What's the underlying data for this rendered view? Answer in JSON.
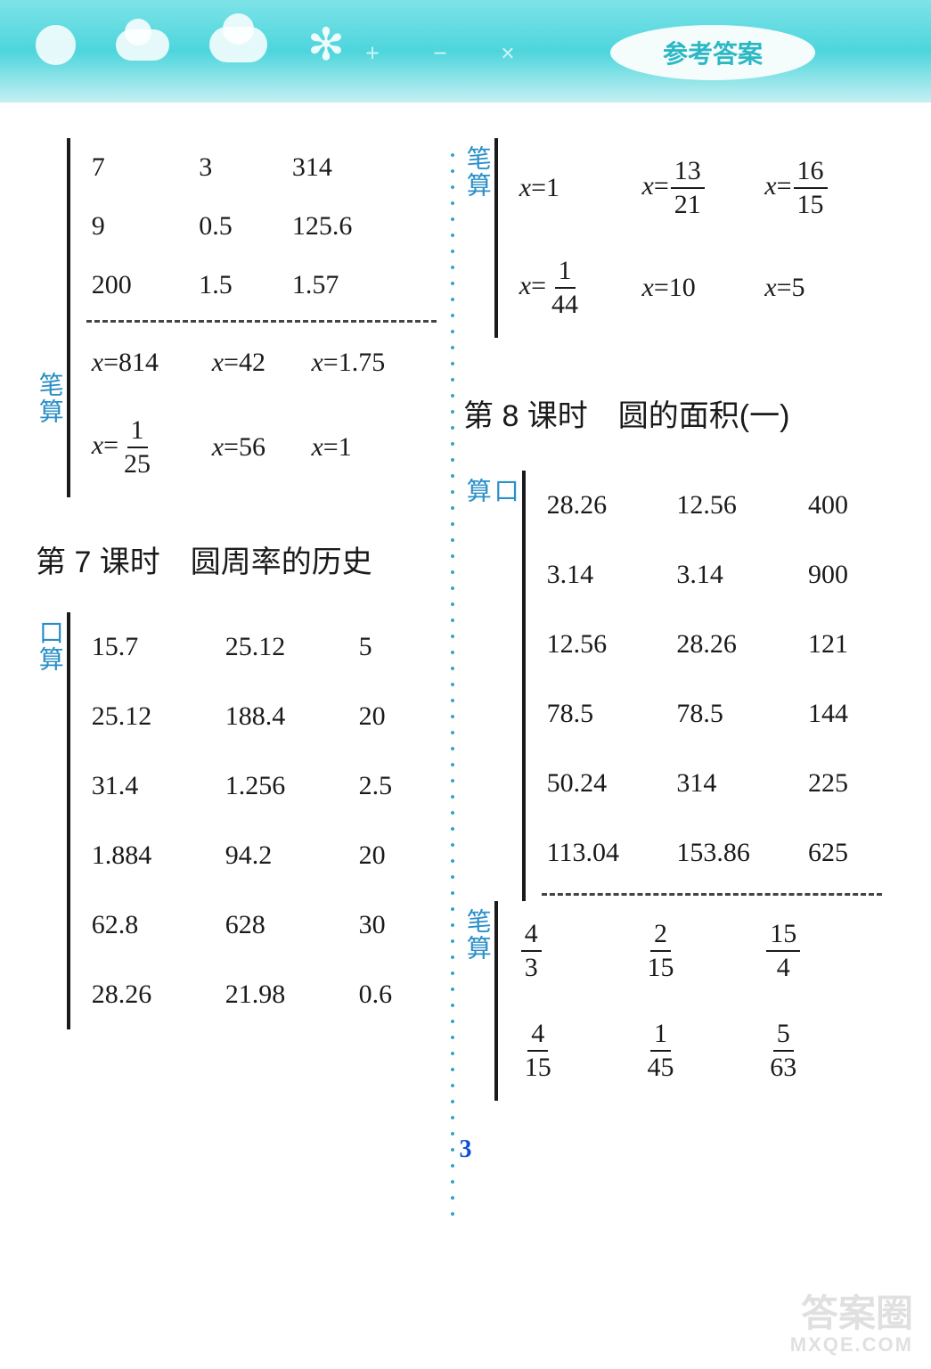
{
  "header": {
    "badge": "参考答案"
  },
  "left": {
    "top_grid": [
      [
        "7",
        "3",
        "314"
      ],
      [
        "9",
        "0.5",
        "125.6"
      ],
      [
        "200",
        "1.5",
        "1.57"
      ]
    ],
    "label_pen": "笔算",
    "top_pen": [
      [
        {
          "t": "eq",
          "v": "x=814"
        },
        {
          "t": "eq",
          "v": "x=42"
        },
        {
          "t": "eq",
          "v": "x=1.75"
        }
      ],
      [
        {
          "t": "eqfrac",
          "pre": "x=",
          "num": "1",
          "den": "25"
        },
        {
          "t": "eq",
          "v": "x=56"
        },
        {
          "t": "eq",
          "v": "x=1"
        }
      ]
    ],
    "heading": "第 7 课时　圆周率的历史",
    "label_oral": "口算",
    "grid7": [
      [
        "15.7",
        "25.12",
        "5"
      ],
      [
        "25.12",
        "188.4",
        "20"
      ],
      [
        "31.4",
        "1.256",
        "2.5"
      ],
      [
        "1.884",
        "94.2",
        "20"
      ],
      [
        "62.8",
        "628",
        "30"
      ],
      [
        "28.26",
        "21.98",
        "0.6"
      ]
    ]
  },
  "right": {
    "label_pen": "笔算",
    "top_pen": [
      [
        {
          "t": "eq",
          "v": "x=1"
        },
        {
          "t": "eqfrac",
          "pre": "x=",
          "num": "13",
          "den": "21"
        },
        {
          "t": "eqfrac",
          "pre": "x=",
          "num": "16",
          "den": "15"
        }
      ],
      [
        {
          "t": "eqfrac",
          "pre": "x=",
          "num": "1",
          "den": "44"
        },
        {
          "t": "eq",
          "v": "x=10"
        },
        {
          "t": "eq",
          "v": "x=5"
        }
      ]
    ],
    "heading": "第 8 课时　圆的面积(一)",
    "label_oral": "口算",
    "grid8": [
      [
        "28.26",
        "12.56",
        "400"
      ],
      [
        "3.14",
        "3.14",
        "900"
      ],
      [
        "12.56",
        "28.26",
        "121"
      ],
      [
        "78.5",
        "78.5",
        "144"
      ],
      [
        "50.24",
        "314",
        "225"
      ],
      [
        "113.04",
        "153.86",
        "625"
      ]
    ],
    "label_pen2": "笔算",
    "pen8": [
      [
        {
          "t": "frac",
          "num": "4",
          "den": "3"
        },
        {
          "t": "frac",
          "num": "2",
          "den": "15"
        },
        {
          "t": "frac",
          "num": "15",
          "den": "4"
        }
      ],
      [
        {
          "t": "frac",
          "num": "4",
          "den": "15"
        },
        {
          "t": "frac",
          "num": "1",
          "den": "45"
        },
        {
          "t": "frac",
          "num": "5",
          "den": "63"
        }
      ]
    ]
  },
  "pagenum": "3",
  "watermark": {
    "main": "答案圈",
    "sub": "MXQE.COM"
  }
}
